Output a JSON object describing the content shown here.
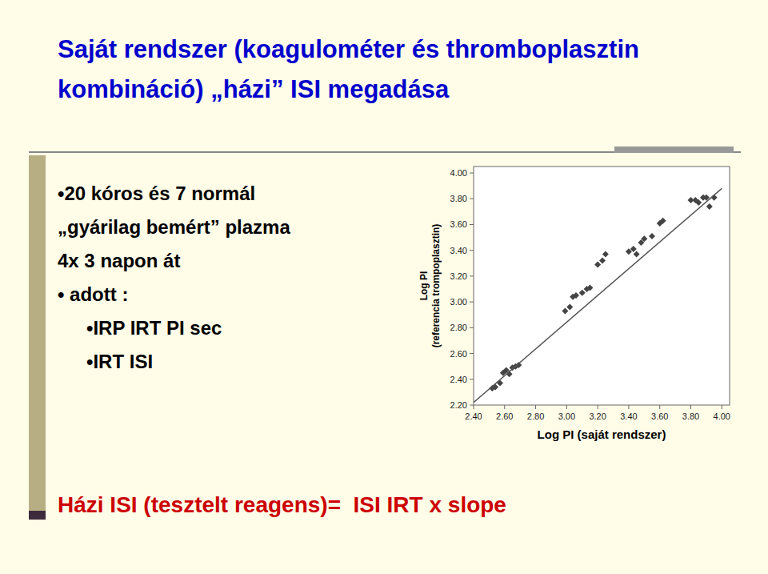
{
  "chart_data": {
    "type": "scatter",
    "title": [
      "Saját rendszer (koagulométer és thromboplasztin",
      "kombináció) „házi” ISI megadása"
    ],
    "annotations": [
      "•20 kóros és 7 normál",
      "„gyárilag bemért” plazma",
      "4x 3 napon át",
      "• adott :",
      "•IRP IRT PI sec",
      "•IRT ISI",
      "Házi ISI (tesztelt reagens)=  ISI IRT x slope"
    ],
    "xlabel": "Log PI (saját rendszer)",
    "ylabel": [
      "Log PI",
      "(referencia trompoplasztin)"
    ],
    "series": [
      {
        "type": "scatter",
        "color": "#444444",
        "marker": "diamond",
        "x": [
          2.52,
          2.54,
          2.57,
          2.59,
          2.61,
          2.63,
          2.65,
          2.67,
          2.69,
          2.99,
          3.02,
          3.04,
          3.06,
          3.1,
          3.13,
          3.15,
          3.2,
          3.23,
          3.25,
          3.4,
          3.43,
          3.45,
          3.48,
          3.5,
          3.55,
          3.6,
          3.62,
          3.8,
          3.83,
          3.85,
          3.88,
          3.9,
          3.92,
          3.95
        ],
        "values": [
          2.33,
          2.34,
          2.37,
          2.45,
          2.47,
          2.44,
          2.49,
          2.5,
          2.51,
          2.93,
          2.96,
          3.04,
          3.05,
          3.07,
          3.1,
          3.11,
          3.29,
          3.32,
          3.37,
          3.39,
          3.41,
          3.37,
          3.46,
          3.49,
          3.51,
          3.61,
          3.63,
          3.79,
          3.79,
          3.77,
          3.81,
          3.81,
          3.74,
          3.81
        ]
      },
      {
        "type": "line",
        "color": "#555555",
        "line_style": "solid",
        "x": [
          2.4,
          4.0
        ],
        "values": [
          2.22,
          3.88
        ]
      }
    ],
    "xlim": [
      2.4,
      4.05
    ],
    "ylim": [
      2.2,
      4.05
    ],
    "xticks": [
      {
        "value": 2.4,
        "label": "2.40"
      },
      {
        "value": 2.6,
        "label": "2.60"
      },
      {
        "value": 2.8,
        "label": "2.80"
      },
      {
        "value": 3.0,
        "label": "3.00"
      },
      {
        "value": 3.2,
        "label": "3.20"
      },
      {
        "value": 3.4,
        "label": "3.40"
      },
      {
        "value": 3.6,
        "label": "3.60"
      },
      {
        "value": 3.8,
        "label": "3.80"
      },
      {
        "value": 4.0,
        "label": "4.00"
      }
    ],
    "yticks": [
      {
        "value": 2.2,
        "label": "2.20"
      },
      {
        "value": 2.4,
        "label": "2.40"
      },
      {
        "value": 2.6,
        "label": "2.60"
      },
      {
        "value": 2.8,
        "label": "2.80"
      },
      {
        "value": 3.0,
        "label": "3.00"
      },
      {
        "value": 3.2,
        "label": "3.20"
      },
      {
        "value": 3.4,
        "label": "3.40"
      },
      {
        "value": 3.6,
        "label": "3.60"
      },
      {
        "value": 3.8,
        "label": "3.80"
      },
      {
        "value": 4.0,
        "label": "4.00"
      }
    ],
    "grid": false
  }
}
